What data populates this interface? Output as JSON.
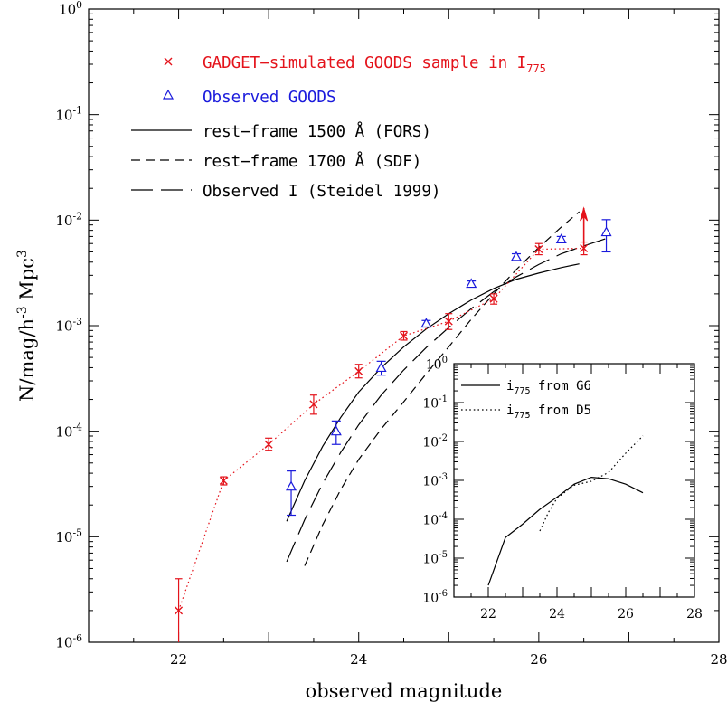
{
  "chart_data": [
    {
      "type": "scatter",
      "xlabel": "observed magnitude",
      "ylabel_parts": [
        "N/mag/h",
        "-3",
        " Mpc",
        "3"
      ],
      "xlim": [
        21,
        28
      ],
      "ylim": [
        1e-06,
        1
      ],
      "yscale": "log",
      "x_ticks": [
        22,
        24,
        26,
        28
      ],
      "y_ticks": [
        {
          "base": "10",
          "exp": "0"
        },
        {
          "base": "10",
          "exp": "-1"
        },
        {
          "base": "10",
          "exp": "-2"
        },
        {
          "base": "10",
          "exp": "-3"
        },
        {
          "base": "10",
          "exp": "-4"
        },
        {
          "base": "10",
          "exp": "-5"
        },
        {
          "base": "10",
          "exp": "-6"
        }
      ],
      "legend": [
        {
          "text": "GADGET−simulated GOODS sample in I",
          "sub": "775",
          "color": "#e4131b",
          "marker": "×"
        },
        {
          "text": "Observed GOODS",
          "sub": "",
          "color": "#1a1adc",
          "marker": "△"
        },
        {
          "text": "rest−frame 1500 Å (FORS)",
          "sub": "",
          "color": "#000000",
          "marker": ""
        },
        {
          "text": "rest−frame 1700 Å (SDF)",
          "sub": "",
          "color": "#000000",
          "marker": ""
        },
        {
          "text": "Observed I (Steidel 1999)",
          "sub": "",
          "color": "#000000",
          "marker": ""
        }
      ],
      "series": [
        {
          "name": "GADGET−simulated GOODS sample in I775",
          "kind": "points_dotted",
          "color": "#e4131b",
          "x": [
            22.0,
            22.5,
            23.0,
            23.5,
            24.0,
            24.5,
            25.0,
            25.5,
            26.0,
            26.5
          ],
          "y": [
            2e-06,
            3.4e-05,
            7.5e-05,
            0.00018,
            0.00037,
            0.0008,
            0.0011,
            0.0018,
            0.0053,
            0.0054
          ],
          "ylo": [
            6.5e-07,
            3.1e-05,
            6.6e-05,
            0.000145,
            0.00032,
            0.00073,
            0.00092,
            0.0016,
            0.0047,
            0.0047
          ],
          "yhi": [
            4e-06,
            3.7e-05,
            8.6e-05,
            0.00022,
            0.00043,
            0.00088,
            0.0013,
            0.002,
            0.006,
            0.0062
          ]
        },
        {
          "name": "Observed GOODS",
          "kind": "points",
          "color": "#1a1adc",
          "x": [
            23.25,
            23.75,
            24.25,
            24.75,
            25.25,
            25.75,
            26.25,
            26.75
          ],
          "y": [
            3e-05,
            0.0001,
            0.0004,
            0.00105,
            0.0025,
            0.0045,
            0.0066,
            0.0077
          ],
          "ylo": [
            1.6e-05,
            7.5e-05,
            0.00034,
            0.00098,
            0.00235,
            0.0042,
            0.0062,
            0.005
          ],
          "yhi": [
            4.2e-05,
            0.000125,
            0.00046,
            0.00112,
            0.00265,
            0.0048,
            0.007,
            0.0101
          ]
        },
        {
          "name": "rest−frame 1500 Å (FORS)",
          "kind": "line",
          "dash": "solid",
          "x": [
            23.2,
            23.4,
            23.6,
            23.8,
            24.0,
            24.25,
            24.5,
            24.75,
            25.0,
            25.25,
            25.5,
            25.75,
            26.0,
            26.25,
            26.45
          ],
          "y": [
            1.4e-05,
            3.4e-05,
            7.2e-05,
            0.000135,
            0.000235,
            0.0004,
            0.00063,
            0.00093,
            0.0013,
            0.00175,
            0.00225,
            0.00275,
            0.00315,
            0.00355,
            0.00385
          ]
        },
        {
          "name": "rest−frame 1700 Å (SDF)",
          "kind": "line",
          "dash": "short",
          "x": [
            23.4,
            23.6,
            23.8,
            24.0,
            24.25,
            24.5,
            24.75,
            25.0,
            25.25,
            25.5,
            25.75,
            26.0,
            26.25,
            26.45
          ],
          "y": [
            5.3e-06,
            1.3e-05,
            2.8e-05,
            5.4e-05,
            0.000105,
            0.00019,
            0.00035,
            0.00063,
            0.00115,
            0.002,
            0.0034,
            0.0055,
            0.0086,
            0.012
          ]
        },
        {
          "name": "Observed I (Steidel 1999)",
          "kind": "line",
          "dash": "long",
          "x": [
            23.2,
            23.4,
            23.6,
            23.8,
            24.0,
            24.25,
            24.5,
            24.75,
            25.0,
            25.25,
            25.5,
            25.75,
            26.0,
            26.25,
            26.5,
            26.75
          ],
          "y": [
            5.8e-06,
            1.45e-05,
            3.2e-05,
            6.3e-05,
            0.000115,
            0.00022,
            0.00038,
            0.00062,
            0.00096,
            0.00145,
            0.0021,
            0.0029,
            0.0038,
            0.0048,
            0.0057,
            0.0067
          ]
        }
      ],
      "annotations": [
        {
          "kind": "upper_arrow",
          "x": 26.5,
          "y_from": 0.0054,
          "y_to": 0.013,
          "color": "#e4131b"
        }
      ]
    },
    {
      "type": "line",
      "xlim": [
        21,
        28
      ],
      "ylim": [
        1e-06,
        1
      ],
      "yscale": "log",
      "x_ticks": [
        22,
        24,
        26,
        28
      ],
      "y_ticks": [
        {
          "base": "10",
          "exp": "0"
        },
        {
          "base": "10",
          "exp": "-1"
        },
        {
          "base": "10",
          "exp": "-2"
        },
        {
          "base": "10",
          "exp": "-3"
        },
        {
          "base": "10",
          "exp": "-4"
        },
        {
          "base": "10",
          "exp": "-5"
        },
        {
          "base": "10",
          "exp": "-6"
        }
      ],
      "legend": [
        {
          "text_pre": "i",
          "sub": "775",
          "text_post": " from G6",
          "style": "solid"
        },
        {
          "text_pre": "i",
          "sub": "775",
          "text_post": " from D5",
          "style": "dotted"
        }
      ],
      "series": [
        {
          "name": "i775 from G6",
          "dash": "solid",
          "x": [
            22.0,
            22.5,
            23.0,
            23.5,
            24.0,
            24.5,
            25.0,
            25.5,
            26.0,
            26.5
          ],
          "y": [
            2e-06,
            3.4e-05,
            7.5e-05,
            0.00018,
            0.00037,
            0.0008,
            0.0012,
            0.0011,
            0.0008,
            0.00048
          ]
        },
        {
          "name": "i775 from D5",
          "dash": "dotted",
          "x": [
            23.5,
            23.75,
            24.0,
            24.5,
            25.0,
            25.5,
            26.0,
            26.5
          ],
          "y": [
            5e-05,
            0.00015,
            0.00035,
            0.00075,
            0.00095,
            0.0016,
            0.005,
            0.014
          ]
        }
      ]
    }
  ]
}
